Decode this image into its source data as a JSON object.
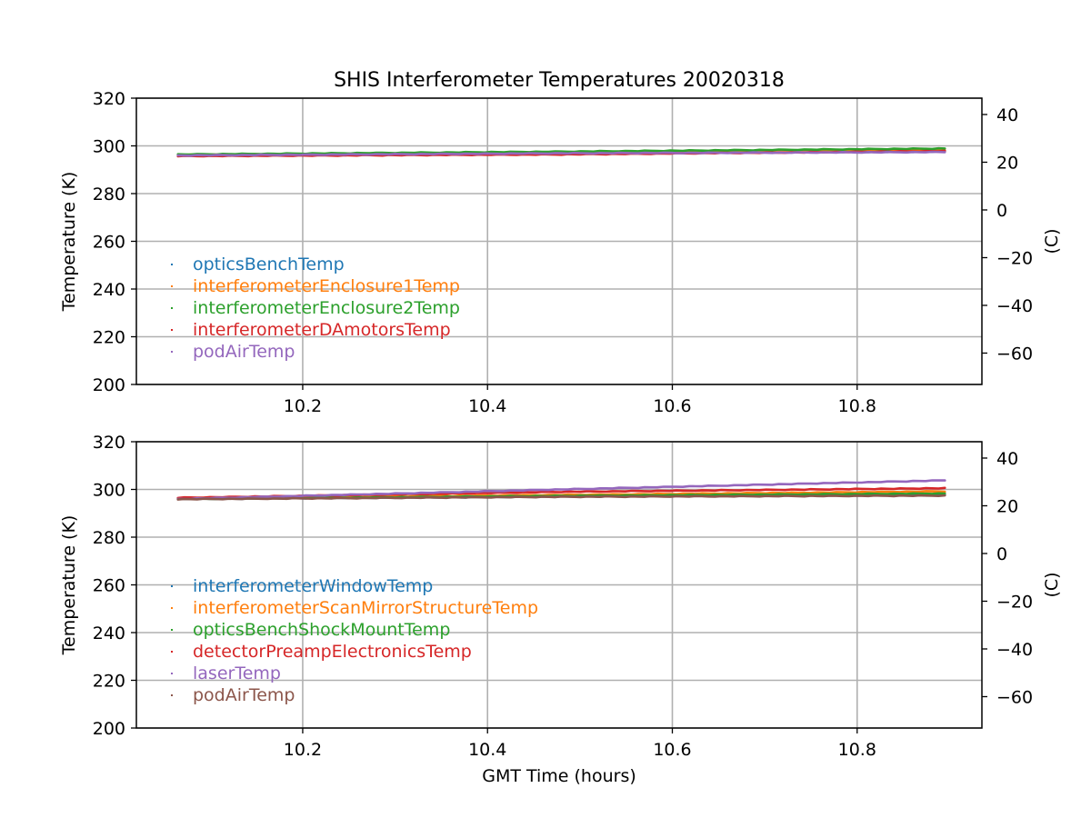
{
  "chart_data": {
    "title": "SHIS Interferometer Temperatures 20020318",
    "xlabel": "GMT Time (hours)",
    "panels": [
      {
        "type": "scatter",
        "ylabel": "Temperature (K)",
        "ylabel_right": "(C)",
        "xlim": [
          10.02,
          10.935
        ],
        "ylim": [
          200,
          320
        ],
        "xticks": [
          "10.2",
          "10.4",
          "10.6",
          "10.8"
        ],
        "yticks": [
          "200",
          "220",
          "240",
          "260",
          "280",
          "300",
          "320"
        ],
        "yticks_right": [
          "−60",
          "−40",
          "−20",
          "0",
          "20",
          "40"
        ],
        "grid": true,
        "legend_position": "lower-left",
        "series": [
          {
            "name": "opticsBenchTemp",
            "color": "#1f77b4",
            "x": [
              10.065,
              10.48,
              10.895
            ],
            "y": [
              296.0,
              296.9,
              297.6
            ]
          },
          {
            "name": "interferometerEnclosure1Temp",
            "color": "#ff7f0e",
            "x": [
              10.065,
              10.48,
              10.895
            ],
            "y": [
              296.2,
              297.2,
              298.2
            ]
          },
          {
            "name": "interferometerEnclosure2Temp",
            "color": "#2ca02c",
            "x": [
              10.065,
              10.48,
              10.895
            ],
            "y": [
              296.4,
              297.6,
              298.9
            ]
          },
          {
            "name": "interferometerDAmotorsTemp",
            "color": "#d62728",
            "x": [
              10.065,
              10.48,
              10.895
            ],
            "y": [
              295.7,
              296.4,
              297.8
            ]
          },
          {
            "name": "podAirTemp",
            "color": "#9467bd",
            "x": [
              10.065,
              10.48,
              10.895
            ],
            "y": [
              296.0,
              296.9,
              297.4
            ]
          }
        ]
      },
      {
        "type": "scatter",
        "ylabel": "Temperature (K)",
        "ylabel_right": "(C)",
        "xlim": [
          10.02,
          10.935
        ],
        "ylim": [
          200,
          320
        ],
        "xticks": [
          "10.2",
          "10.4",
          "10.6",
          "10.8"
        ],
        "yticks": [
          "200",
          "220",
          "240",
          "260",
          "280",
          "300",
          "320"
        ],
        "yticks_right": [
          "−60",
          "−40",
          "−20",
          "0",
          "20",
          "40"
        ],
        "grid": true,
        "legend_position": "lower-left",
        "series": [
          {
            "name": "interferometerWindowTemp",
            "color": "#1f77b4",
            "x": [
              10.065,
              10.48,
              10.895
            ],
            "y": [
              296.0,
              297.0,
              297.7
            ]
          },
          {
            "name": "interferometerScanMirrorStructureTemp",
            "color": "#ff7f0e",
            "x": [
              10.065,
              10.48,
              10.895
            ],
            "y": [
              296.2,
              297.7,
              299.2
            ]
          },
          {
            "name": "opticsBenchShockMountTemp",
            "color": "#2ca02c",
            "x": [
              10.065,
              10.48,
              10.895
            ],
            "y": [
              296.0,
              297.3,
              298.3
            ]
          },
          {
            "name": "detectorPreampElectronicsTemp",
            "color": "#d62728",
            "x": [
              10.065,
              10.48,
              10.895
            ],
            "y": [
              296.5,
              299.0,
              300.5
            ]
          },
          {
            "name": "laserTemp",
            "color": "#9467bd",
            "x": [
              10.065,
              10.48,
              10.895
            ],
            "y": [
              296.0,
              300.0,
              303.8
            ]
          },
          {
            "name": "podAirTemp",
            "color": "#8c564b",
            "x": [
              10.065,
              10.48,
              10.895
            ],
            "y": [
              295.9,
              296.9,
              297.4
            ]
          }
        ]
      }
    ]
  }
}
